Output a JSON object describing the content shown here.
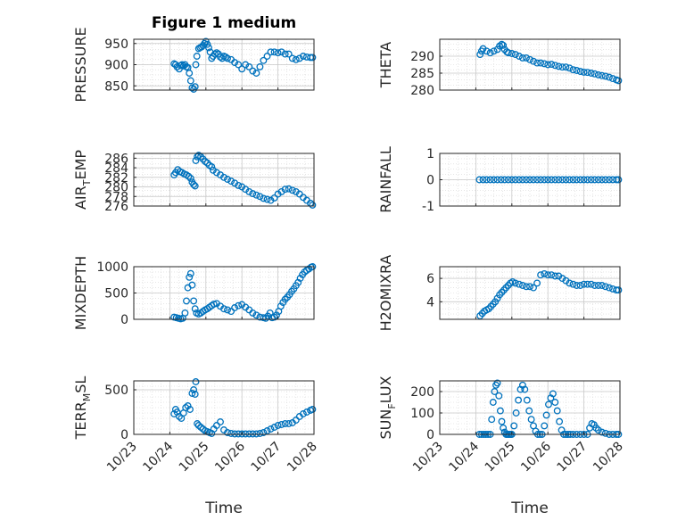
{
  "figure": {
    "title": "Figure 1 medium",
    "xlabel": "Time",
    "marker_color": "#0072BD",
    "x_ticks": [
      "10/23",
      "10/24",
      "10/25",
      "10/26",
      "10/27",
      "10/28"
    ],
    "x_range": [
      "10/23",
      "10/28"
    ]
  },
  "chart_data": [
    {
      "type": "scatter",
      "ylabel": "PRESSURE",
      "ylim": [
        840,
        960
      ],
      "yticks": [
        850,
        900,
        950
      ],
      "grid": true,
      "x": [
        1.12,
        1.16,
        1.2,
        1.26,
        1.3,
        1.34,
        1.38,
        1.42,
        1.46,
        1.5,
        1.54,
        1.58,
        1.62,
        1.66,
        1.7,
        1.72,
        1.75,
        1.8,
        1.84,
        1.88,
        1.92,
        1.96,
        2.0,
        2.04,
        2.08,
        2.12,
        2.16,
        2.2,
        2.25,
        2.3,
        2.35,
        2.4,
        2.45,
        2.5,
        2.55,
        2.6,
        2.7,
        2.8,
        2.9,
        3.0,
        3.1,
        3.2,
        3.3,
        3.4,
        3.5,
        3.6,
        3.7,
        3.8,
        3.9,
        4.0,
        4.1,
        4.2,
        4.3,
        4.4,
        4.5,
        4.6,
        4.7,
        4.8,
        4.9,
        4.96
      ],
      "y": [
        902,
        900,
        895,
        890,
        898,
        900,
        897,
        900,
        895,
        893,
        880,
        862,
        845,
        842,
        848,
        900,
        920,
        938,
        940,
        942,
        945,
        950,
        955,
        948,
        940,
        930,
        915,
        920,
        925,
        928,
        925,
        918,
        915,
        920,
        918,
        915,
        912,
        905,
        900,
        890,
        900,
        895,
        885,
        880,
        895,
        910,
        920,
        930,
        930,
        928,
        930,
        925,
        925,
        915,
        912,
        915,
        920,
        918,
        917,
        917
      ]
    },
    {
      "type": "scatter",
      "ylabel": "THETA",
      "ylim": [
        280,
        295
      ],
      "yticks": [
        280,
        285,
        290
      ],
      "grid": true,
      "x": [
        1.12,
        1.16,
        1.2,
        1.3,
        1.4,
        1.5,
        1.6,
        1.66,
        1.72,
        1.76,
        1.8,
        1.86,
        1.9,
        2.0,
        2.1,
        2.2,
        2.3,
        2.4,
        2.5,
        2.6,
        2.7,
        2.8,
        2.9,
        3.0,
        3.1,
        3.2,
        3.3,
        3.4,
        3.5,
        3.6,
        3.7,
        3.8,
        3.9,
        4.0,
        4.1,
        4.2,
        4.3,
        4.4,
        4.5,
        4.6,
        4.7,
        4.8,
        4.9,
        4.96
      ],
      "y": [
        290.5,
        291.5,
        292.2,
        291.5,
        291.0,
        291.5,
        292.0,
        293.0,
        293.5,
        293.2,
        292.0,
        291.3,
        291.0,
        290.8,
        290.5,
        290.0,
        289.5,
        289.5,
        289.0,
        288.5,
        288.0,
        288.0,
        287.8,
        287.5,
        287.6,
        287.3,
        287.0,
        286.8,
        286.8,
        286.5,
        286.0,
        285.8,
        285.5,
        285.3,
        285.2,
        285.0,
        284.8,
        284.5,
        284.3,
        284.1,
        283.8,
        283.4,
        283.0,
        282.8
      ]
    },
    {
      "type": "scatter",
      "ylabel": "AIR_TEMP",
      "ylim": [
        276,
        287
      ],
      "yticks": [
        276,
        278,
        280,
        282,
        284,
        286
      ],
      "grid": true,
      "x": [
        1.12,
        1.16,
        1.22,
        1.28,
        1.34,
        1.4,
        1.46,
        1.52,
        1.58,
        1.62,
        1.66,
        1.7,
        1.72,
        1.76,
        1.8,
        1.86,
        1.92,
        1.98,
        2.04,
        2.1,
        2.16,
        2.2,
        2.3,
        2.4,
        2.5,
        2.6,
        2.7,
        2.8,
        2.9,
        3.0,
        3.1,
        3.2,
        3.3,
        3.4,
        3.5,
        3.6,
        3.7,
        3.8,
        3.9,
        4.0,
        4.1,
        4.2,
        4.3,
        4.4,
        4.5,
        4.6,
        4.7,
        4.8,
        4.9,
        4.96
      ],
      "y": [
        282.5,
        283.0,
        283.6,
        283.2,
        283.0,
        282.7,
        282.5,
        282.2,
        281.8,
        281.0,
        280.5,
        280.2,
        285.5,
        286.3,
        286.6,
        286.3,
        285.8,
        285.3,
        285.0,
        284.5,
        284.2,
        283.5,
        283.0,
        282.5,
        282.0,
        281.6,
        281.2,
        280.8,
        280.3,
        280.0,
        279.5,
        279.0,
        278.6,
        278.3,
        278.0,
        277.6,
        277.4,
        277.2,
        277.7,
        278.5,
        279.0,
        279.5,
        279.6,
        279.3,
        279.0,
        278.5,
        277.8,
        277.2,
        276.6,
        276.2
      ]
    },
    {
      "type": "scatter",
      "ylabel": "RAINFALL",
      "ylim": [
        -1,
        1
      ],
      "yticks": [
        -1,
        0,
        1
      ],
      "grid": true,
      "x": [
        1.1,
        1.2,
        1.3,
        1.4,
        1.5,
        1.6,
        1.7,
        1.8,
        1.9,
        2.0,
        2.1,
        2.2,
        2.3,
        2.4,
        2.5,
        2.6,
        2.7,
        2.8,
        2.9,
        3.0,
        3.1,
        3.2,
        3.3,
        3.4,
        3.5,
        3.6,
        3.7,
        3.8,
        3.9,
        4.0,
        4.1,
        4.2,
        4.3,
        4.4,
        4.5,
        4.6,
        4.7,
        4.8,
        4.9,
        4.96
      ],
      "y": [
        0,
        0,
        0,
        0,
        0,
        0,
        0,
        0,
        0,
        0,
        0,
        0,
        0,
        0,
        0,
        0,
        0,
        0,
        0,
        0,
        0,
        0,
        0,
        0,
        0,
        0,
        0,
        0,
        0,
        0,
        0,
        0,
        0,
        0,
        0,
        0,
        0,
        0,
        0,
        0
      ]
    },
    {
      "type": "scatter",
      "ylabel": "MIXDEPTH",
      "ylim": [
        0,
        1000
      ],
      "yticks": [
        0,
        500,
        1000
      ],
      "grid": true,
      "x": [
        1.12,
        1.18,
        1.24,
        1.3,
        1.36,
        1.42,
        1.46,
        1.5,
        1.54,
        1.58,
        1.62,
        1.66,
        1.7,
        1.74,
        1.8,
        1.86,
        1.92,
        1.98,
        2.04,
        2.1,
        2.16,
        2.22,
        2.3,
        2.4,
        2.5,
        2.6,
        2.7,
        2.8,
        2.9,
        3.0,
        3.1,
        3.2,
        3.3,
        3.4,
        3.5,
        3.6,
        3.66,
        3.72,
        3.78,
        3.84,
        3.9,
        3.96,
        4.02,
        4.08,
        4.14,
        4.2,
        4.26,
        4.32,
        4.38,
        4.44,
        4.5,
        4.56,
        4.62,
        4.68,
        4.74,
        4.8,
        4.86,
        4.92,
        4.96
      ],
      "y": [
        40,
        30,
        20,
        10,
        20,
        120,
        350,
        600,
        800,
        870,
        650,
        350,
        200,
        120,
        100,
        120,
        150,
        180,
        200,
        230,
        260,
        290,
        300,
        250,
        200,
        180,
        150,
        220,
        260,
        280,
        230,
        180,
        120,
        80,
        40,
        30,
        20,
        60,
        120,
        30,
        40,
        80,
        150,
        250,
        320,
        380,
        420,
        470,
        530,
        580,
        640,
        700,
        780,
        850,
        900,
        930,
        960,
        990,
        1000
      ]
    },
    {
      "type": "scatter",
      "ylabel": "H2OMIXRA",
      "ylim": [
        2.5,
        7
      ],
      "yticks": [
        4,
        6
      ],
      "grid": true,
      "x": [
        1.12,
        1.18,
        1.24,
        1.3,
        1.36,
        1.42,
        1.48,
        1.54,
        1.6,
        1.66,
        1.72,
        1.78,
        1.84,
        1.9,
        1.96,
        2.02,
        2.1,
        2.2,
        2.3,
        2.4,
        2.5,
        2.6,
        2.7,
        2.8,
        2.9,
        3.0,
        3.1,
        3.2,
        3.3,
        3.4,
        3.5,
        3.6,
        3.7,
        3.8,
        3.9,
        4.0,
        4.1,
        4.2,
        4.3,
        4.4,
        4.5,
        4.6,
        4.7,
        4.8,
        4.9,
        4.96
      ],
      "y": [
        2.8,
        3.0,
        3.2,
        3.3,
        3.4,
        3.6,
        3.8,
        4.0,
        4.3,
        4.6,
        4.8,
        5.0,
        5.2,
        5.4,
        5.6,
        5.7,
        5.6,
        5.5,
        5.4,
        5.3,
        5.3,
        5.2,
        5.6,
        6.3,
        6.4,
        6.3,
        6.3,
        6.2,
        6.2,
        6.0,
        5.8,
        5.6,
        5.5,
        5.4,
        5.4,
        5.5,
        5.5,
        5.5,
        5.4,
        5.4,
        5.4,
        5.3,
        5.2,
        5.1,
        5.0,
        5.0
      ]
    },
    {
      "type": "scatter",
      "ylabel": "TERR_MSL",
      "ylim": [
        0,
        600
      ],
      "yticks": [
        0,
        500
      ],
      "grid": true,
      "x": [
        1.12,
        1.16,
        1.2,
        1.26,
        1.32,
        1.38,
        1.44,
        1.5,
        1.56,
        1.62,
        1.66,
        1.7,
        1.72,
        1.76,
        1.8,
        1.86,
        1.92,
        1.98,
        2.04,
        2.1,
        2.16,
        2.22,
        2.3,
        2.4,
        2.5,
        2.6,
        2.7,
        2.8,
        2.9,
        3.0,
        3.1,
        3.2,
        3.3,
        3.4,
        3.5,
        3.6,
        3.7,
        3.8,
        3.9,
        4.0,
        4.1,
        4.2,
        4.3,
        4.4,
        4.5,
        4.6,
        4.7,
        4.8,
        4.9,
        4.96
      ],
      "y": [
        230,
        280,
        250,
        200,
        180,
        240,
        300,
        320,
        280,
        460,
        500,
        450,
        590,
        120,
        100,
        80,
        60,
        40,
        30,
        20,
        10,
        60,
        100,
        140,
        50,
        20,
        10,
        5,
        5,
        5,
        5,
        5,
        5,
        5,
        10,
        20,
        40,
        60,
        80,
        100,
        110,
        120,
        120,
        130,
        160,
        200,
        230,
        250,
        270,
        280
      ]
    },
    {
      "type": "scatter",
      "ylabel": "SUN_FLUX",
      "ylim": [
        0,
        250
      ],
      "yticks": [
        0,
        100,
        200
      ],
      "grid": true,
      "x": [
        1.1,
        1.16,
        1.22,
        1.28,
        1.34,
        1.4,
        1.44,
        1.48,
        1.52,
        1.56,
        1.6,
        1.64,
        1.68,
        1.72,
        1.76,
        1.8,
        1.84,
        1.88,
        1.92,
        1.96,
        2.0,
        2.06,
        2.12,
        2.18,
        2.24,
        2.3,
        2.36,
        2.42,
        2.48,
        2.54,
        2.6,
        2.66,
        2.72,
        2.78,
        2.84,
        2.9,
        2.96,
        3.02,
        3.08,
        3.14,
        3.2,
        3.26,
        3.32,
        3.38,
        3.44,
        3.5,
        3.56,
        3.62,
        3.7,
        3.8,
        3.9,
        4.0,
        4.1,
        4.16,
        4.22,
        4.28,
        4.34,
        4.4,
        4.5,
        4.6,
        4.7,
        4.8,
        4.9,
        4.96
      ],
      "y": [
        0,
        0,
        0,
        0,
        0,
        0,
        70,
        150,
        200,
        230,
        240,
        180,
        110,
        60,
        30,
        10,
        0,
        0,
        0,
        0,
        0,
        40,
        100,
        160,
        210,
        230,
        210,
        160,
        110,
        70,
        40,
        15,
        0,
        0,
        0,
        40,
        90,
        140,
        170,
        190,
        150,
        110,
        60,
        20,
        0,
        0,
        0,
        0,
        0,
        0,
        0,
        0,
        0,
        30,
        50,
        45,
        30,
        20,
        10,
        5,
        0,
        0,
        0,
        0
      ]
    }
  ]
}
